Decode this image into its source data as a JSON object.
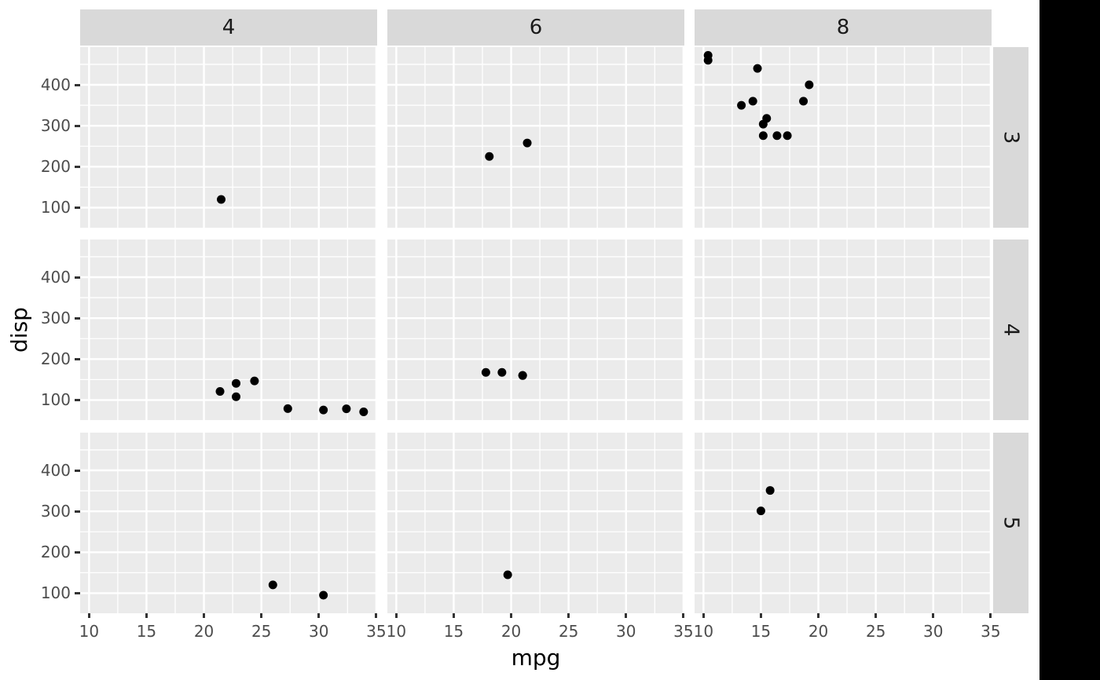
{
  "chart_data": {
    "type": "scatter",
    "title": "",
    "xlabel": "mpg",
    "ylabel": "disp",
    "grid": true,
    "legend": "none",
    "facet": {
      "col_variable": "cyl",
      "col_labels": [
        "4",
        "6",
        "8"
      ],
      "row_variable": "gear",
      "row_labels": [
        "3",
        "4",
        "5"
      ]
    },
    "x_ticks": [
      10,
      15,
      20,
      25,
      30,
      35
    ],
    "y_ticks": [
      100,
      200,
      300,
      400
    ],
    "x_minor": [
      12.5,
      17.5,
      22.5,
      27.5,
      32.5
    ],
    "y_minor": [
      150,
      250,
      350,
      450
    ],
    "xlim": [
      9.225,
      35.075
    ],
    "ylim": [
      51.05,
      492.05
    ],
    "points": [
      {
        "cyl": "4",
        "gear": "3",
        "data": [
          [
            21.5,
            120.1
          ]
        ]
      },
      {
        "cyl": "6",
        "gear": "3",
        "data": [
          [
            21.4,
            258
          ],
          [
            18.1,
            225
          ]
        ]
      },
      {
        "cyl": "8",
        "gear": "3",
        "data": [
          [
            18.7,
            360
          ],
          [
            14.3,
            360
          ],
          [
            16.4,
            275.8
          ],
          [
            17.3,
            275.8
          ],
          [
            15.2,
            275.8
          ],
          [
            10.4,
            472
          ],
          [
            10.4,
            460
          ],
          [
            14.7,
            440
          ],
          [
            15.5,
            318
          ],
          [
            15.2,
            304
          ],
          [
            13.3,
            350
          ],
          [
            19.2,
            400
          ]
        ]
      },
      {
        "cyl": "4",
        "gear": "4",
        "data": [
          [
            22.8,
            108
          ],
          [
            24.4,
            146.7
          ],
          [
            22.8,
            140.8
          ],
          [
            32.4,
            78.7
          ],
          [
            30.4,
            75.7
          ],
          [
            33.9,
            71.1
          ],
          [
            27.3,
            79
          ],
          [
            21.4,
            121
          ]
        ]
      },
      {
        "cyl": "6",
        "gear": "4",
        "data": [
          [
            21,
            160
          ],
          [
            21,
            160
          ],
          [
            19.2,
            167.6
          ],
          [
            17.8,
            167.6
          ]
        ]
      },
      {
        "cyl": "8",
        "gear": "4",
        "data": []
      },
      {
        "cyl": "4",
        "gear": "5",
        "data": [
          [
            26,
            120.3
          ],
          [
            30.4,
            95.1
          ]
        ]
      },
      {
        "cyl": "6",
        "gear": "5",
        "data": [
          [
            19.7,
            145
          ]
        ]
      },
      {
        "cyl": "8",
        "gear": "5",
        "data": [
          [
            15.8,
            351
          ],
          [
            15,
            301
          ]
        ]
      }
    ]
  },
  "style": {
    "background": "#FFFFFF",
    "panel_bg": "#EBEBEB",
    "strip_bg": "#D9D9D9",
    "grid_color": "#FFFFFF",
    "point_color": "#000000",
    "tick_label_color": "#4D4D4D",
    "tick_mark_color": "#333333",
    "axis_title_color": "#000000",
    "strip_text_color": "#1A1A1A",
    "right_band_color": "#000000"
  }
}
